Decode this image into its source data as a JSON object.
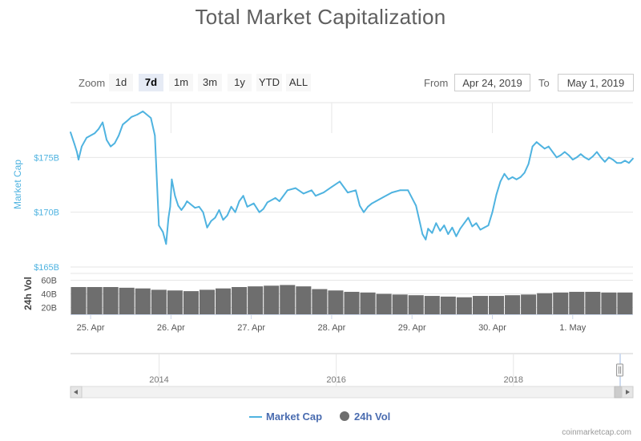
{
  "title": "Total Market Capitalization",
  "zoom": {
    "label": "Zoom",
    "buttons": [
      "1d",
      "7d",
      "1m",
      "3m",
      "1y",
      "YTD",
      "ALL"
    ],
    "active": "7d"
  },
  "range": {
    "from_label": "From",
    "from_value": "Apr 24, 2019",
    "to_label": "To",
    "to_value": "May 1, 2019"
  },
  "colors": {
    "market_cap": "#4fb3e0",
    "volume": "#6e6e6e",
    "legend_text": "#4a6cb0"
  },
  "chart_data": {
    "type": "line",
    "title": "Total Market Capitalization",
    "x_range": [
      0,
      7
    ],
    "x_tick_positions": [
      0.25,
      1.25,
      2.25,
      3.25,
      4.25,
      5.25,
      6.25
    ],
    "x_tick_labels": [
      "25. Apr",
      "26. Apr",
      "27. Apr",
      "28. Apr",
      "29. Apr",
      "30. Apr",
      "1. May"
    ],
    "market_cap": {
      "name": "Market Cap",
      "ylabel": "Market Cap",
      "unit": "USD billions",
      "ylim": [
        165,
        180
      ],
      "tick_values": [
        165,
        170,
        175
      ],
      "tick_labels": [
        "$165B",
        "$170B",
        "$175B"
      ],
      "x": [
        0,
        0.05,
        0.08,
        0.1,
        0.14,
        0.2,
        0.3,
        0.35,
        0.4,
        0.45,
        0.5,
        0.55,
        0.6,
        0.65,
        0.7,
        0.76,
        0.83,
        0.9,
        1.0,
        1.05,
        1.1,
        1.15,
        1.19,
        1.22,
        1.24,
        1.26,
        1.3,
        1.34,
        1.38,
        1.42,
        1.45,
        1.5,
        1.55,
        1.6,
        1.65,
        1.7,
        1.75,
        1.8,
        1.85,
        1.9,
        1.95,
        2.0,
        2.05,
        2.1,
        2.15,
        2.2,
        2.28,
        2.35,
        2.4,
        2.45,
        2.55,
        2.6,
        2.7,
        2.8,
        2.9,
        3.0,
        3.05,
        3.15,
        3.25,
        3.35,
        3.45,
        3.55,
        3.6,
        3.65,
        3.7,
        3.75,
        3.8,
        3.9,
        4.0,
        4.1,
        4.2,
        4.3,
        4.35,
        4.38,
        4.42,
        4.45,
        4.5,
        4.55,
        4.6,
        4.65,
        4.7,
        4.75,
        4.8,
        4.85,
        4.9,
        4.95,
        5.0,
        5.05,
        5.1,
        5.15,
        5.2,
        5.25,
        5.3,
        5.35,
        5.4,
        5.45,
        5.5,
        5.55,
        5.6,
        5.65,
        5.7,
        5.75,
        5.8,
        5.85,
        5.9,
        5.95,
        6.0,
        6.05,
        6.1,
        6.15,
        6.2,
        6.25,
        6.3,
        6.35,
        6.4,
        6.45,
        6.5,
        6.55,
        6.6,
        6.65,
        6.7,
        6.75,
        6.8,
        6.85,
        6.9,
        6.95,
        7.0
      ],
      "values": [
        177.3,
        176.2,
        175.5,
        174.8,
        176.0,
        176.8,
        177.2,
        177.6,
        178.2,
        176.6,
        176.0,
        176.3,
        177.0,
        178.0,
        178.3,
        178.7,
        178.9,
        179.2,
        178.6,
        177.0,
        168.8,
        168.2,
        167.1,
        169.5,
        170.5,
        173.0,
        171.5,
        170.6,
        170.2,
        170.6,
        171.0,
        170.7,
        170.4,
        170.5,
        170.0,
        168.6,
        169.2,
        169.5,
        170.2,
        169.3,
        169.7,
        170.5,
        170.0,
        171.0,
        171.5,
        170.5,
        170.8,
        170.0,
        170.3,
        170.9,
        171.3,
        171.0,
        172.0,
        172.2,
        171.7,
        172.0,
        171.5,
        171.8,
        172.3,
        172.8,
        171.8,
        172.0,
        170.6,
        170.0,
        170.5,
        170.8,
        171.0,
        171.4,
        171.8,
        172.0,
        172.0,
        170.6,
        169.0,
        168.0,
        167.5,
        168.5,
        168.1,
        169.0,
        168.3,
        168.8,
        168.0,
        168.6,
        167.8,
        168.5,
        169.0,
        169.5,
        168.7,
        169.0,
        168.4,
        168.6,
        168.8,
        170.0,
        171.6,
        172.8,
        173.5,
        173.0,
        173.2,
        173.0,
        173.2,
        173.6,
        174.4,
        176.0,
        176.4,
        176.1,
        175.8,
        176.0,
        175.5,
        175.0,
        175.2,
        175.5,
        175.2,
        174.8,
        175.0,
        175.3,
        175.0,
        174.8,
        175.1,
        175.5,
        175.0,
        174.6,
        175.0,
        174.8,
        174.5,
        174.5,
        174.7,
        174.5,
        174.9
      ],
      "style": "line"
    },
    "volume": {
      "name": "24h Vol",
      "ylabel": "24h Vol",
      "unit": "USD billions",
      "ylim": [
        10,
        70
      ],
      "tick_values": [
        20,
        40,
        60
      ],
      "tick_labels": [
        "20B",
        "40B",
        "60B"
      ],
      "x": [
        0,
        0.2,
        0.4,
        0.6,
        0.8,
        1.0,
        1.2,
        1.4,
        1.6,
        1.8,
        2.0,
        2.2,
        2.4,
        2.6,
        2.8,
        3.0,
        3.2,
        3.4,
        3.6,
        3.8,
        4.0,
        4.2,
        4.4,
        4.6,
        4.8,
        5.0,
        5.2,
        5.4,
        5.6,
        5.8,
        6.0,
        6.2,
        6.4,
        6.6,
        6.8,
        7.0
      ],
      "values": [
        50,
        50,
        50,
        49,
        48,
        46,
        45,
        44,
        46,
        48,
        50,
        51,
        52,
        53,
        51,
        47,
        45,
        43,
        42,
        40,
        39,
        38,
        37,
        36,
        35,
        37,
        37,
        38,
        39,
        41,
        42,
        43,
        43,
        42,
        42,
        41
      ],
      "style": "column"
    },
    "navigator": {
      "tick_labels": [
        "2014",
        "2016",
        "2018"
      ],
      "tick_years": [
        2014,
        2016,
        2018
      ],
      "year_range": [
        2013.0,
        2019.35
      ]
    },
    "legend": [
      "Market Cap",
      "24h Vol"
    ],
    "legend_position": "bottom-center"
  },
  "credit": "coinmarketcap.com"
}
